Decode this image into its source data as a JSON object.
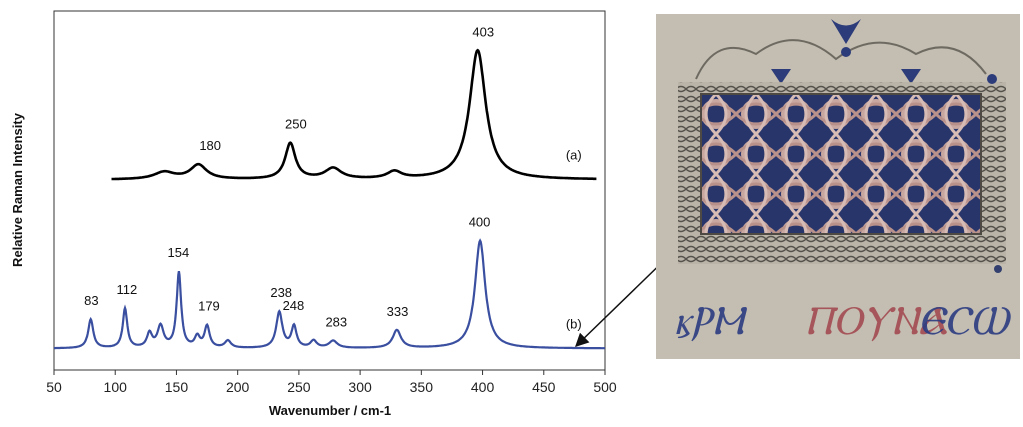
{
  "chart_data": {
    "type": "line",
    "xlabel": "Wavenumber / cm-1",
    "ylabel": "Relative Raman Intensity",
    "xlim": [
      50,
      500
    ],
    "xticks": [
      50,
      100,
      150,
      200,
      250,
      300,
      350,
      400,
      450,
      500
    ],
    "grid": false,
    "series": [
      {
        "name": "(a)",
        "color": "#000000",
        "baseline": 0.53,
        "peaks": [
          {
            "center": 140,
            "height": 0.02,
            "width": 10
          },
          {
            "center": 168,
            "height": 0.04,
            "width": 8
          },
          {
            "center": 243,
            "height": 0.1,
            "width": 5
          },
          {
            "center": 278,
            "height": 0.03,
            "width": 8
          },
          {
            "center": 328,
            "height": 0.02,
            "width": 7
          },
          {
            "center": 396,
            "height": 0.36,
            "width": 8
          }
        ],
        "x_range": [
          97,
          493
        ],
        "labels": [
          {
            "x": 180,
            "text": "180"
          },
          {
            "x": 250,
            "text": "250"
          },
          {
            "x": 403,
            "text": "403"
          }
        ]
      },
      {
        "name": "(b)",
        "color": "#3a4fa0",
        "baseline": 0.06,
        "peaks": [
          {
            "center": 80,
            "height": 0.08,
            "width": 2.5
          },
          {
            "center": 108,
            "height": 0.11,
            "width": 2.2
          },
          {
            "center": 128,
            "height": 0.04,
            "width": 2.5
          },
          {
            "center": 137,
            "height": 0.06,
            "width": 3
          },
          {
            "center": 152,
            "height": 0.21,
            "width": 2.2
          },
          {
            "center": 167,
            "height": 0.03,
            "width": 2.5
          },
          {
            "center": 175,
            "height": 0.06,
            "width": 2.5
          },
          {
            "center": 192,
            "height": 0.02,
            "width": 3
          },
          {
            "center": 234,
            "height": 0.1,
            "width": 3
          },
          {
            "center": 246,
            "height": 0.06,
            "width": 2.5
          },
          {
            "center": 262,
            "height": 0.02,
            "width": 3
          },
          {
            "center": 278,
            "height": 0.02,
            "width": 4
          },
          {
            "center": 330,
            "height": 0.05,
            "width": 4
          },
          {
            "center": 398,
            "height": 0.3,
            "width": 5
          }
        ],
        "x_range": [
          50,
          500
        ],
        "labels": [
          {
            "x": 83,
            "text": "83"
          },
          {
            "x": 112,
            "text": "112"
          },
          {
            "x": 154,
            "text": "154"
          },
          {
            "x": 179,
            "text": "179"
          },
          {
            "x": 238,
            "text": "238"
          },
          {
            "x": 248,
            "text": "248"
          },
          {
            "x": 283,
            "text": "283"
          },
          {
            "x": 333,
            "text": "333"
          },
          {
            "x": 400,
            "text": "400"
          }
        ]
      }
    ]
  }
}
